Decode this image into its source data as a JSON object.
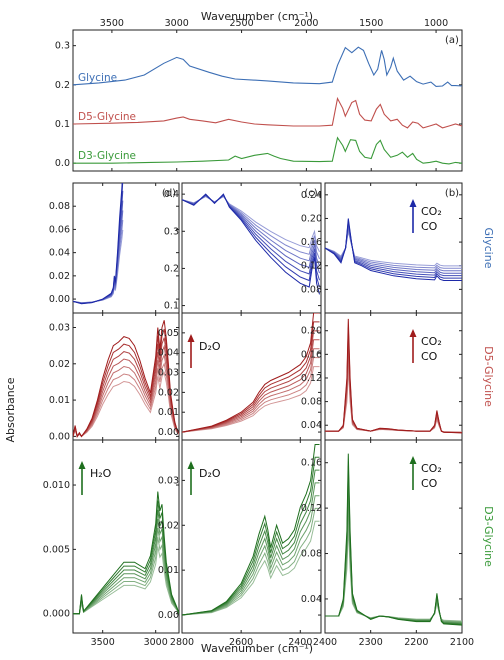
{
  "figure": {
    "top_xlabel": "Wavenumber (cm⁻¹)",
    "bottom_xlabel": "Wavenumber (cm⁻¹)",
    "ylabel": "Absorbance"
  },
  "chart_data": [
    {
      "id": "top",
      "type": "line",
      "panel_label": "(a)",
      "xlim": [
        3800,
        800
      ],
      "ylim": [
        -0.02,
        0.34
      ],
      "xticks": [
        3500,
        3000,
        2500,
        2000,
        1500,
        1000
      ],
      "yticks": [
        0.0,
        0.1,
        0.2,
        0.3
      ],
      "series": [
        {
          "name": "Glycine",
          "color": "#3d6fb5",
          "x": [
            3800,
            3600,
            3400,
            3250,
            3100,
            3000,
            2950,
            2900,
            2750,
            2650,
            2550,
            2300,
            2100,
            1900,
            1800,
            1760,
            1700,
            1650,
            1600,
            1560,
            1520,
            1480,
            1450,
            1420,
            1400,
            1380,
            1350,
            1330,
            1300,
            1250,
            1200,
            1150,
            1100,
            1040,
            1000,
            950,
            910,
            880,
            850,
            800
          ],
          "y": [
            0.2,
            0.205,
            0.212,
            0.225,
            0.255,
            0.27,
            0.265,
            0.248,
            0.232,
            0.222,
            0.215,
            0.21,
            0.205,
            0.203,
            0.207,
            0.25,
            0.295,
            0.282,
            0.296,
            0.288,
            0.255,
            0.225,
            0.24,
            0.288,
            0.265,
            0.225,
            0.245,
            0.268,
            0.235,
            0.212,
            0.222,
            0.208,
            0.202,
            0.207,
            0.196,
            0.197,
            0.207,
            0.198,
            0.198,
            0.197
          ]
        },
        {
          "name": "D5-Glycine",
          "color": "#c0504d",
          "x": [
            3800,
            3500,
            3300,
            3100,
            3000,
            2950,
            2900,
            2800,
            2700,
            2600,
            2500,
            2400,
            2300,
            2100,
            1900,
            1800,
            1760,
            1720,
            1700,
            1650,
            1620,
            1590,
            1550,
            1500,
            1460,
            1430,
            1400,
            1350,
            1300,
            1260,
            1220,
            1180,
            1140,
            1100,
            1050,
            1000,
            950,
            900,
            850,
            800
          ],
          "y": [
            0.1,
            0.102,
            0.104,
            0.108,
            0.115,
            0.118,
            0.112,
            0.108,
            0.103,
            0.112,
            0.105,
            0.1,
            0.098,
            0.095,
            0.095,
            0.097,
            0.165,
            0.14,
            0.12,
            0.155,
            0.16,
            0.125,
            0.11,
            0.108,
            0.138,
            0.15,
            0.125,
            0.108,
            0.112,
            0.097,
            0.09,
            0.105,
            0.102,
            0.09,
            0.095,
            0.1,
            0.09,
            0.095,
            0.1,
            0.095
          ]
        },
        {
          "name": "D3-Glycine",
          "color": "#3a9a3a",
          "x": [
            3800,
            3500,
            3200,
            3000,
            2800,
            2600,
            2550,
            2500,
            2400,
            2300,
            2250,
            2200,
            2100,
            1900,
            1800,
            1760,
            1720,
            1700,
            1660,
            1620,
            1590,
            1550,
            1500,
            1460,
            1430,
            1400,
            1350,
            1300,
            1260,
            1220,
            1180,
            1150,
            1100,
            1050,
            1000,
            950,
            900,
            850,
            800
          ],
          "y": [
            0.0,
            0.0,
            0.002,
            0.003,
            0.005,
            0.008,
            0.018,
            0.012,
            0.02,
            0.025,
            0.018,
            0.012,
            0.005,
            0.004,
            0.005,
            0.065,
            0.045,
            0.03,
            0.06,
            0.058,
            0.03,
            0.015,
            0.012,
            0.048,
            0.058,
            0.035,
            0.015,
            0.02,
            0.028,
            0.015,
            0.025,
            0.01,
            0.0,
            0.002,
            0.005,
            0.0,
            -0.002,
            0.002,
            0.0
          ]
        }
      ]
    },
    {
      "id": "gly-d",
      "type": "line",
      "panel_label": "(d)",
      "curve_color": "#1d29a8",
      "xlim": [
        3780,
        2780
      ],
      "ylim": [
        -0.012,
        0.1
      ],
      "xticks": [
        3500,
        3000
      ],
      "yticks": [
        0.0,
        0.02,
        0.04,
        0.06,
        0.08
      ],
      "series": [
        {
          "name": "",
          "values_x": [
            3780,
            3700,
            3600,
            3500,
            3420,
            3400,
            3390,
            3380,
            3360,
            3340,
            3320,
            3310
          ],
          "values_y": [
            -0.002,
            -0.004,
            -0.003,
            0.0,
            0.005,
            0.01,
            0.02,
            0.015,
            0.04,
            0.07,
            0.095,
            0.11
          ]
        }
      ]
    },
    {
      "id": "gly-c",
      "type": "line",
      "panel_label": "(c)",
      "curve_color": "#1d29a8",
      "xlim": [
        2800,
        2330
      ],
      "ylim": [
        0.08,
        0.43
      ],
      "xticks": [
        2800,
        2600,
        2400
      ],
      "yticks": [
        0.1,
        0.2,
        0.3,
        0.4
      ],
      "series": [
        {
          "name": "",
          "x": [
            2800,
            2760,
            2720,
            2690,
            2660,
            2640,
            2600,
            2550,
            2500,
            2450,
            2400,
            2370,
            2360,
            2352,
            2345,
            2335
          ],
          "y": [
            0.385,
            0.37,
            0.4,
            0.375,
            0.4,
            0.365,
            0.33,
            0.275,
            0.23,
            0.19,
            0.16,
            0.15,
            0.2,
            0.23,
            0.16,
            0.13
          ]
        }
      ]
    },
    {
      "id": "gly-b",
      "type": "line",
      "panel_label": "(b)",
      "annotation": "CO₂ CO",
      "row_label": "Glycine",
      "curve_color": "#1d29a8",
      "xlim": [
        2400,
        2100
      ],
      "ylim": [
        0.04,
        0.26
      ],
      "xticks": [
        2400,
        2300,
        2200,
        2100
      ],
      "yticks": [
        0.08,
        0.12,
        0.16,
        0.2,
        0.24
      ],
      "series": [
        {
          "name": "",
          "x": [
            2400,
            2380,
            2365,
            2355,
            2349,
            2342,
            2335,
            2320,
            2300,
            2250,
            2200,
            2160,
            2155,
            2148,
            2140,
            2100
          ],
          "y": [
            0.15,
            0.14,
            0.125,
            0.15,
            0.2,
            0.16,
            0.125,
            0.12,
            0.112,
            0.103,
            0.098,
            0.096,
            0.103,
            0.097,
            0.095,
            0.095
          ]
        }
      ]
    },
    {
      "id": "d5-d",
      "type": "line",
      "curve_color": "#a01c1c",
      "xlim": [
        3780,
        2780
      ],
      "ylim": [
        -0.001,
        0.034
      ],
      "xticks": [
        3500,
        3000
      ],
      "yticks": [
        0.0,
        0.01,
        0.02,
        0.03
      ],
      "series": [
        {
          "name": "",
          "x": [
            3780,
            3760,
            3740,
            3720,
            3700,
            3650,
            3600,
            3550,
            3500,
            3450,
            3400,
            3350,
            3300,
            3250,
            3200,
            3150,
            3100,
            3050,
            3000,
            2980,
            2960,
            2940,
            2920,
            2900,
            2880,
            2860,
            2840,
            2820,
            2800,
            2780
          ],
          "y": [
            0.0,
            0.003,
            0.0,
            0.001,
            0.0,
            0.002,
            0.005,
            0.01,
            0.016,
            0.021,
            0.025,
            0.026,
            0.0275,
            0.027,
            0.025,
            0.021,
            0.016,
            0.012,
            0.022,
            0.03,
            0.024,
            0.03,
            0.032,
            0.027,
            0.02,
            0.012,
            0.008,
            0.004,
            0.002,
            0.001
          ]
        }
      ]
    },
    {
      "id": "d5-c",
      "type": "line",
      "annotation": "D₂O",
      "curve_color": "#a01c1c",
      "xlim": [
        2800,
        2330
      ],
      "ylim": [
        -0.004,
        0.06
      ],
      "xticks": [
        2800,
        2600,
        2400
      ],
      "yticks": [
        0.0,
        0.01,
        0.02,
        0.03,
        0.04,
        0.05
      ],
      "series": [
        {
          "name": "",
          "x": [
            2800,
            2700,
            2650,
            2600,
            2560,
            2540,
            2520,
            2500,
            2470,
            2440,
            2400,
            2380,
            2365,
            2355,
            2345,
            2335
          ],
          "y": [
            0.0,
            0.003,
            0.006,
            0.01,
            0.015,
            0.02,
            0.024,
            0.026,
            0.028,
            0.03,
            0.034,
            0.038,
            0.045,
            0.06,
            0.06,
            0.06
          ]
        }
      ]
    },
    {
      "id": "d5-b",
      "type": "line",
      "annotation": "CO₂ CO",
      "row_label": "D5-Glycine",
      "curve_color": "#a01c1c",
      "xlim": [
        2400,
        2100
      ],
      "ylim": [
        0.015,
        0.23
      ],
      "xticks": [
        2400,
        2300,
        2200,
        2100
      ],
      "yticks": [
        0.04,
        0.08,
        0.12,
        0.16,
        0.2
      ],
      "series": [
        {
          "name": "",
          "x": [
            2400,
            2370,
            2360,
            2352,
            2349,
            2345,
            2340,
            2330,
            2300,
            2280,
            2260,
            2240,
            2200,
            2170,
            2160,
            2155,
            2150,
            2145,
            2140,
            2100
          ],
          "y": [
            0.03,
            0.03,
            0.04,
            0.12,
            0.22,
            0.12,
            0.05,
            0.035,
            0.03,
            0.035,
            0.034,
            0.032,
            0.03,
            0.03,
            0.04,
            0.065,
            0.045,
            0.03,
            0.028,
            0.027
          ]
        }
      ]
    },
    {
      "id": "d3-d",
      "type": "line",
      "annotation": "H₂O",
      "curve_color": "#1e6f1e",
      "xlim": [
        3780,
        2780
      ],
      "ylim": [
        -0.0015,
        0.0135
      ],
      "xticks": [
        3500,
        3000
      ],
      "yticks": [
        0.0,
        0.005,
        0.01
      ],
      "series": [
        {
          "name": "",
          "x": [
            3780,
            3720,
            3700,
            3690,
            3680,
            3650,
            3600,
            3500,
            3400,
            3300,
            3200,
            3100,
            3050,
            3000,
            2980,
            2960,
            2940,
            2920,
            2900,
            2850,
            2800,
            2780
          ],
          "y": [
            0.0,
            0.0,
            0.0015,
            0.0008,
            0.0002,
            0.0005,
            0.001,
            0.002,
            0.003,
            0.004,
            0.004,
            0.0035,
            0.0045,
            0.007,
            0.0095,
            0.008,
            0.0085,
            0.006,
            0.004,
            0.0015,
            0.0005,
            0.0
          ]
        }
      ]
    },
    {
      "id": "d3-c",
      "type": "line",
      "annotation": "D₂O",
      "curve_color": "#1e6f1e",
      "xlim": [
        2800,
        2330
      ],
      "ylim": [
        -0.004,
        0.039
      ],
      "xticks": [
        2800,
        2600,
        2400
      ],
      "yticks": [
        0.0,
        0.01,
        0.02,
        0.03
      ],
      "series": [
        {
          "name": "",
          "x": [
            2800,
            2700,
            2650,
            2600,
            2560,
            2540,
            2520,
            2510,
            2500,
            2480,
            2460,
            2440,
            2420,
            2400,
            2380,
            2365,
            2350,
            2340,
            2335
          ],
          "y": [
            0.0,
            0.001,
            0.003,
            0.007,
            0.013,
            0.018,
            0.022,
            0.019,
            0.015,
            0.02,
            0.016,
            0.017,
            0.019,
            0.024,
            0.027,
            0.03,
            0.038,
            0.038,
            0.038
          ]
        }
      ]
    },
    {
      "id": "d3-b",
      "type": "line",
      "annotation": "CO₂ CO",
      "row_label": "D3-Glycine",
      "curve_color": "#1e6f1e",
      "xlim": [
        2400,
        2100
      ],
      "ylim": [
        0.01,
        0.18
      ],
      "xticks": [
        2400,
        2300,
        2200,
        2100
      ],
      "yticks": [
        0.04,
        0.08,
        0.12,
        0.16
      ],
      "series": [
        {
          "name": "",
          "x": [
            2400,
            2370,
            2360,
            2352,
            2349,
            2345,
            2340,
            2330,
            2300,
            2280,
            2260,
            2240,
            2200,
            2170,
            2160,
            2155,
            2150,
            2145,
            2140,
            2100
          ],
          "y": [
            0.025,
            0.025,
            0.04,
            0.1,
            0.168,
            0.1,
            0.045,
            0.03,
            0.022,
            0.025,
            0.024,
            0.022,
            0.02,
            0.02,
            0.028,
            0.045,
            0.03,
            0.02,
            0.018,
            0.017
          ]
        }
      ]
    }
  ]
}
